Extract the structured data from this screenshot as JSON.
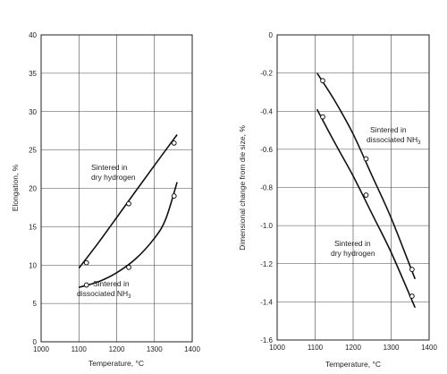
{
  "chart_data": [
    {
      "type": "line",
      "xlabel": "Temperature, °C",
      "ylabel": "Elongation, %",
      "xlim": [
        1000,
        1400
      ],
      "ylim": [
        0,
        40
      ],
      "xticks": [
        "1000",
        "1100",
        "1200",
        "1300",
        "1400"
      ],
      "yticks": [
        "0",
        "5",
        "10",
        "15",
        "20",
        "25",
        "30",
        "35",
        "40"
      ],
      "grid": true,
      "series": [
        {
          "label_line1": "Sintered in",
          "label_line2": "dry hydrogen",
          "curve": [
            [
              1100,
              9.6
            ],
            [
              1150,
              12.8
            ],
            [
              1200,
              16.2
            ],
            [
              1250,
              19.6
            ],
            [
              1300,
              23.0
            ],
            [
              1360,
              27.0
            ]
          ],
          "points": [
            [
              1120,
              10.3
            ],
            [
              1232,
              18.0
            ],
            [
              1352,
              25.9
            ]
          ]
        },
        {
          "label_line1": "Sintered in",
          "label_line2": "dissociated NH",
          "label_sub": "3",
          "curve": [
            [
              1100,
              7.1
            ],
            [
              1150,
              7.8
            ],
            [
              1200,
              9.0
            ],
            [
              1250,
              10.8
            ],
            [
              1300,
              13.5
            ],
            [
              1330,
              16.0
            ],
            [
              1360,
              20.8
            ]
          ],
          "points": [
            [
              1120,
              7.4
            ],
            [
              1232,
              9.7
            ],
            [
              1352,
              19.0
            ]
          ]
        }
      ]
    },
    {
      "type": "line",
      "xlabel": "Temperature, °C",
      "ylabel": "Dimensional change from die size, %",
      "xlim": [
        1000,
        1400
      ],
      "ylim": [
        -1.6,
        0
      ],
      "xticks": [
        "1000",
        "1100",
        "1200",
        "1300",
        "1400"
      ],
      "yticks": [
        "0",
        "-0.2",
        "-0.4",
        "-0.6",
        "-0.8",
        "-1.0",
        "-1.2",
        "-1.4",
        "-1.6"
      ],
      "grid": true,
      "series": [
        {
          "label_line1": "Sintered in",
          "label_line2": "dissociated NH",
          "label_sub": "3",
          "curve": [
            [
              1105,
              -0.2
            ],
            [
              1150,
              -0.34
            ],
            [
              1200,
              -0.52
            ],
            [
              1250,
              -0.74
            ],
            [
              1300,
              -0.96
            ],
            [
              1363,
              -1.28
            ]
          ],
          "points": [
            [
              1120,
              -0.24
            ],
            [
              1234,
              -0.65
            ],
            [
              1355,
              -1.23
            ]
          ]
        },
        {
          "label_line1": "Sintered in",
          "label_line2": "dry hydrogen",
          "curve": [
            [
              1105,
              -0.39
            ],
            [
              1150,
              -0.56
            ],
            [
              1200,
              -0.74
            ],
            [
              1250,
              -0.94
            ],
            [
              1300,
              -1.14
            ],
            [
              1363,
              -1.43
            ]
          ],
          "points": [
            [
              1120,
              -0.43
            ],
            [
              1234,
              -0.84
            ],
            [
              1355,
              -1.37
            ]
          ]
        }
      ]
    }
  ]
}
